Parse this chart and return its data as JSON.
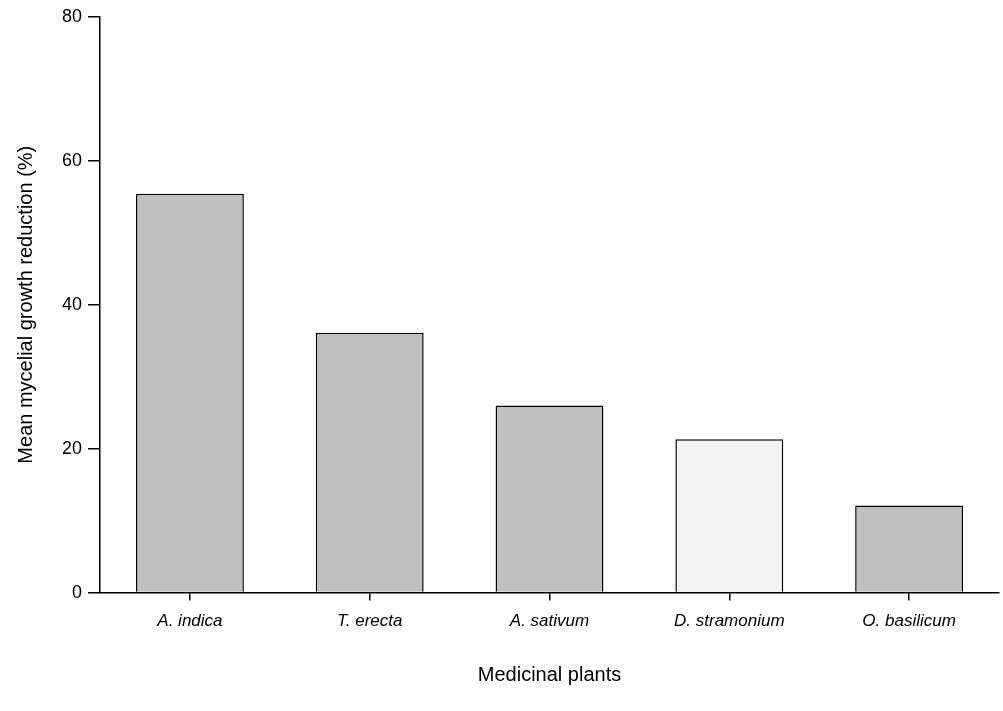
{
  "chart_data": {
    "type": "bar",
    "xlabel": "Medicinal plants",
    "ylabel": "Mean mycelial growth reduction (%)",
    "categories": [
      "A. indica",
      "T. erecta",
      "A. sativum",
      "D. stramonium",
      "O. basilicum"
    ],
    "values": [
      55.4,
      36.1,
      26.0,
      21.3,
      12.1
    ],
    "colors": [
      "#c0c0c0",
      "#c0c0c0",
      "#c0c0c0",
      "#f4f4f4",
      "#c0c0c0"
    ],
    "ylim": [
      0,
      80
    ],
    "yticks": [
      0,
      20,
      40,
      60,
      80
    ],
    "grid": false,
    "legend": false
  }
}
